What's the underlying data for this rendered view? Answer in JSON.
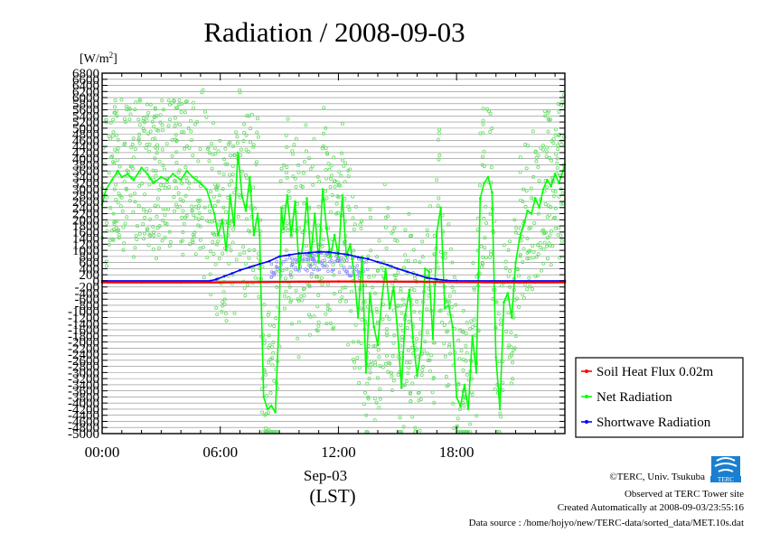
{
  "colors": {
    "soil": "#ff0000",
    "net": "#00ff00",
    "net_scatter": "#66dd66",
    "short": "#0000ff",
    "short_scatter": "#8888ff",
    "grid": "#888888",
    "axis": "#000000",
    "background": "#ffffff",
    "logo_blue": "#1a7fd0"
  },
  "chart_data": {
    "type": "line",
    "title": "Radiation / 2008-09-03",
    "ylabel": "[W/m",
    "ylabel_sup": "2",
    "ylabel_close": "]",
    "xlabel_line1": "Sep-03",
    "xlabel_line2": "(LST)",
    "y_range": [
      -5000,
      6800
    ],
    "y_ticks": [
      6800,
      6600,
      6400,
      6200,
      6000,
      5800,
      5600,
      5400,
      5200,
      5000,
      4800,
      4600,
      4400,
      4200,
      4000,
      3800,
      3600,
      3400,
      3200,
      3000,
      2800,
      2600,
      2400,
      2200,
      2000,
      1800,
      1600,
      1400,
      1200,
      1000,
      800,
      600,
      400,
      200,
      0,
      -200,
      -400,
      -600,
      -800,
      -1000,
      -1200,
      -1400,
      -1600,
      -1800,
      -2000,
      -2200,
      -2400,
      -2600,
      -2800,
      -3000,
      -3200,
      -3400,
      -3600,
      -3800,
      -4000,
      -4200,
      -4400,
      -4600,
      -4800,
      -5000
    ],
    "y_tick_labels": [
      "6800",
      "6600",
      "6400",
      "6200",
      "6000",
      "5800",
      "5600",
      "5400",
      "5200",
      "5000",
      "4800",
      "4600",
      "4400",
      "4200",
      "4000",
      "3800",
      "3600",
      "3400",
      "3200",
      "3000",
      "2800",
      "2600",
      "2400",
      "2200",
      "2000",
      "1800",
      "1600",
      "1400",
      "1200",
      "1000",
      "800",
      "600",
      "400",
      "200",
      "0",
      "-200",
      "-400",
      "-600",
      "-800",
      "-1000",
      "-1200",
      "-1400",
      "-1600",
      "-1800",
      "-2000",
      "-2200",
      "-2400",
      "-2600",
      "-2800",
      "-3000",
      "-3200",
      "-3400",
      "-3600",
      "-3800",
      "-4000",
      "-4200",
      "-4400",
      "-4600",
      "-4800",
      "-5000"
    ],
    "x_range": [
      0,
      23.5
    ],
    "x_ticks": [
      0,
      6,
      12,
      18
    ],
    "x_tick_labels": [
      "00:00",
      "06:00",
      "12:00",
      "18:00"
    ],
    "grid": true,
    "legend_position": "bottom-right outside",
    "series": [
      {
        "name": "Soil Heat Flux 0.02m",
        "color_key": "soil",
        "x": [
          0,
          2,
          4,
          6,
          8,
          10,
          12,
          14,
          16,
          18,
          20,
          22,
          23.5
        ],
        "values": [
          -50,
          -50,
          -50,
          -50,
          -40,
          -30,
          -20,
          -25,
          -30,
          -40,
          -50,
          -50,
          -50
        ]
      },
      {
        "name": "Net Radiation",
        "color_key": "net",
        "x": [
          0,
          0.2,
          0.5,
          0.8,
          1.0,
          1.3,
          1.6,
          2.0,
          2.3,
          2.6,
          3.0,
          3.3,
          3.6,
          4.0,
          4.3,
          4.6,
          5.0,
          5.3,
          5.5,
          5.7,
          5.9,
          6.1,
          6.3,
          6.5,
          6.7,
          6.9,
          7.1,
          7.3,
          7.5,
          7.7,
          7.9,
          8.0,
          8.1,
          8.2,
          8.4,
          8.6,
          8.8,
          9.0,
          9.1,
          9.2,
          9.4,
          9.6,
          9.8,
          10.0,
          10.2,
          10.4,
          10.6,
          10.8,
          11.0,
          11.2,
          11.4,
          11.6,
          11.8,
          12.0,
          12.2,
          12.4,
          12.6,
          12.8,
          13.0,
          13.2,
          13.4,
          13.6,
          13.8,
          14.0,
          14.2,
          14.4,
          14.6,
          14.8,
          15.0,
          15.2,
          15.4,
          15.6,
          15.8,
          16.0,
          16.2,
          16.4,
          16.6,
          16.8,
          17.0,
          17.2,
          17.4,
          17.6,
          17.8,
          18.0,
          18.2,
          18.4,
          18.6,
          18.8,
          19.0,
          19.2,
          19.4,
          19.6,
          19.8,
          20.0,
          20.2,
          20.4,
          20.6,
          20.8,
          21.0,
          21.2,
          21.4,
          21.6,
          21.8,
          22.0,
          22.2,
          22.4,
          22.6,
          22.8,
          23.0,
          23.2,
          23.5
        ],
        "values": [
          2500,
          3000,
          3300,
          3600,
          3400,
          3500,
          3300,
          3700,
          3500,
          3200,
          3400,
          3300,
          3500,
          3300,
          3600,
          3400,
          3200,
          3000,
          2600,
          2200,
          1500,
          2000,
          1000,
          2800,
          1800,
          4200,
          2800,
          2300,
          3400,
          1500,
          2200,
          1500,
          -1200,
          -3800,
          -4200,
          -4100,
          -4300,
          -1000,
          2400,
          1700,
          2800,
          1500,
          2600,
          400,
          1200,
          2700,
          800,
          2200,
          600,
          3000,
          1700,
          800,
          1500,
          800,
          2800,
          800,
          1200,
          200,
          -1200,
          800,
          -3000,
          -400,
          -1500,
          -2100,
          -600,
          400,
          -900,
          -200,
          -1600,
          -3500,
          -1100,
          -300,
          -2000,
          -3100,
          -2200,
          400,
          300,
          -1900,
          1600,
          2400,
          -900,
          -800,
          -1500,
          -3800,
          -4100,
          -3400,
          -4200,
          -1800,
          -3000,
          2700,
          3200,
          3400,
          2900,
          -2500,
          -4200,
          -700,
          -400,
          -1200,
          600,
          1400,
          1800,
          2300,
          2200,
          2700,
          2400,
          3000,
          3300,
          3100,
          3500,
          3200,
          3800
        ],
        "scatter_band": true
      },
      {
        "name": "Shortwave Radiation",
        "color_key": "short",
        "x": [
          0,
          5.5,
          5.8,
          6.2,
          6.6,
          7.0,
          7.5,
          8.0,
          8.5,
          9.0,
          9.5,
          10.0,
          10.5,
          11.0,
          11.5,
          12.0,
          12.5,
          13.0,
          13.5,
          14.0,
          14.5,
          15.0,
          15.5,
          16.0,
          16.5,
          17.0,
          17.5,
          18.0,
          23.5
        ],
        "values": [
          0,
          0,
          50,
          150,
          250,
          350,
          450,
          550,
          650,
          800,
          850,
          900,
          920,
          950,
          940,
          900,
          860,
          780,
          720,
          620,
          520,
          400,
          300,
          200,
          100,
          50,
          10,
          0,
          0
        ]
      }
    ]
  },
  "credits": {
    "copyright": "©TERC, Univ. Tsukuba",
    "observed": "Observed at TERC Tower site",
    "created": "Created Automatically at 2008-09-03/23:55:16",
    "source": "Data source : /home/hojyo/new/TERC-data/sorted_data/MET.10s.dat"
  },
  "logo": {
    "text": "TERC"
  }
}
